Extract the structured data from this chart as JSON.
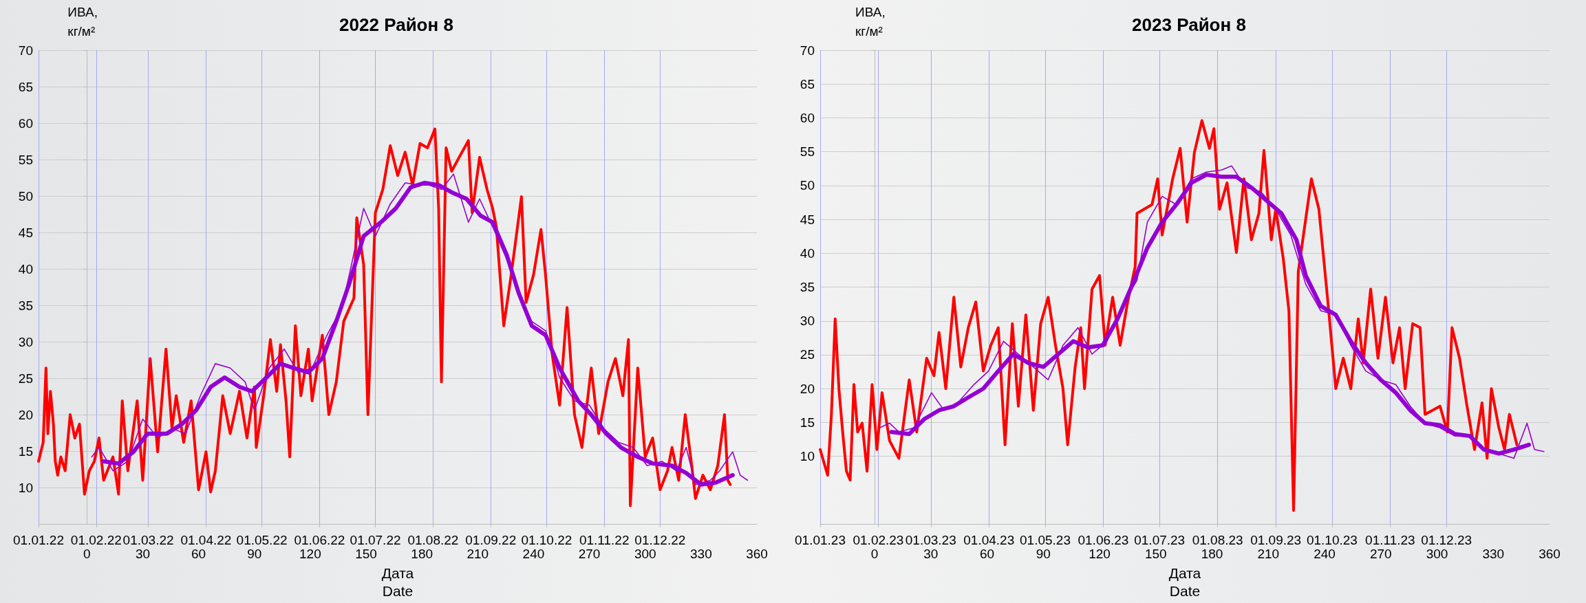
{
  "chart_data": [
    {
      "type": "line",
      "title": "2022 Район 8",
      "xlabel": "Дата\nDate",
      "ylabel": "ИВА,\nкг/м²",
      "xlim": [
        -26,
        360
      ],
      "xticks": [
        0,
        30,
        60,
        90,
        120,
        150,
        180,
        210,
        240,
        270,
        300,
        330,
        360
      ],
      "x2lim": [
        "2022-01-01",
        "2023-01-22"
      ],
      "x2ticks": [
        {
          "value": "2022-01-01",
          "label": "01.01.22"
        },
        {
          "value": "2022-02-01",
          "label": "01.02.22"
        },
        {
          "value": "2022-03-01",
          "label": "01.03.22"
        },
        {
          "value": "2022-04-01",
          "label": "01.04.22"
        },
        {
          "value": "2022-05-01",
          "label": "01.05.22"
        },
        {
          "value": "2022-06-01",
          "label": "01.06.22"
        },
        {
          "value": "2022-07-01",
          "label": "01.07.22"
        },
        {
          "value": "2022-08-01",
          "label": "01.08.22"
        },
        {
          "value": "2022-09-01",
          "label": "01.09.22"
        },
        {
          "value": "2022-10-01",
          "label": "01.10.22"
        },
        {
          "value": "2022-11-01",
          "label": "01.11.22"
        },
        {
          "value": "2022-12-01",
          "label": "01.12.22"
        }
      ],
      "ylim": [
        5,
        70
      ],
      "yticks": [
        10,
        15,
        20,
        25,
        30,
        35,
        40,
        45,
        50,
        55,
        60,
        65,
        70
      ],
      "grid": true,
      "marker": "none",
      "line_style": "solid",
      "series": [
        {
          "color": "#ff0000",
          "x": [
            -26,
            -23.5,
            -22,
            -21,
            -19.6,
            -18,
            -17,
            -15.7,
            -14,
            -11.7,
            -9,
            -6.5,
            -4,
            -1.3,
            1.3,
            4,
            6.5,
            9,
            14,
            17,
            19,
            22,
            27,
            30,
            34,
            38,
            42.5,
            45.7,
            48,
            52,
            56,
            60,
            64,
            66.5,
            69,
            73,
            77,
            82,
            86,
            90,
            91,
            95,
            98.6,
            102,
            104,
            107,
            109,
            112,
            115,
            119,
            121,
            126.5,
            130,
            134,
            138,
            143.5,
            145,
            148.7,
            151,
            155,
            159,
            163,
            167,
            171,
            175,
            179,
            183,
            187,
            189,
            190.5,
            193,
            196,
            200,
            205,
            207,
            211,
            215,
            218,
            220,
            224,
            228,
            233.5,
            236,
            240,
            244,
            246.5,
            250,
            254,
            258,
            262,
            266,
            271,
            275,
            280,
            284,
            288,
            291,
            292,
            296,
            300,
            304,
            308,
            312,
            314.4,
            318,
            321.5,
            325,
            327,
            331,
            335,
            339,
            342.6,
            344.4,
            345.7
          ],
          "values": [
            13.6,
            16.2,
            26.4,
            17.4,
            23.2,
            18.7,
            13.6,
            11.7,
            14.2,
            12.3,
            20,
            16.8,
            18.7,
            9.1,
            12.3,
            13.6,
            16.8,
            11,
            14.2,
            9.1,
            21.9,
            12.3,
            21.9,
            11,
            27.7,
            14.9,
            29,
            18.1,
            22.6,
            16.2,
            21.9,
            9.7,
            14.9,
            9.4,
            12.3,
            22.6,
            17.4,
            23.2,
            16.8,
            23.8,
            15.5,
            22.6,
            30.3,
            23.2,
            29.6,
            21.9,
            14.2,
            32.2,
            22.6,
            29,
            21.9,
            30.9,
            20,
            24.5,
            32.8,
            36,
            47,
            40.6,
            20,
            47.7,
            50.9,
            56.9,
            52.8,
            56,
            51.5,
            57.2,
            56.6,
            59.2,
            48.3,
            24.5,
            56.6,
            53.4,
            55.3,
            57.6,
            47.7,
            55.3,
            50.9,
            48.3,
            45.8,
            32.2,
            39.2,
            49.9,
            35.4,
            39.2,
            45.4,
            39,
            28.3,
            21.3,
            34.7,
            20,
            15.5,
            26.4,
            17.4,
            24.5,
            27.7,
            22.6,
            30.3,
            7.5,
            26.4,
            14.2,
            16.8,
            9.7,
            12.3,
            15.5,
            11,
            20,
            13,
            8.5,
            11.7,
            9.7,
            13,
            20,
            11,
            10.4
          ]
        },
        {
          "color": "#9900cc",
          "x": [
            2.6,
            6.5,
            14,
            22,
            30,
            38,
            45.7,
            53,
            61,
            69,
            77,
            85,
            90,
            98,
            106,
            113.5,
            121,
            129,
            137,
            141,
            148.7,
            155,
            163,
            171,
            179,
            184,
            190.5,
            197,
            205,
            211,
            218,
            225.6,
            233.5,
            239,
            246.5,
            254,
            262,
            270,
            277.8,
            285.6,
            293.5,
            301,
            309,
            316.8,
            322,
            327,
            335,
            340,
            347,
            351,
            355
          ],
          "values": [
            14.2,
            15.5,
            12.3,
            13.6,
            19.4,
            16.8,
            18.1,
            17.4,
            22.6,
            27,
            26.4,
            24.5,
            20.6,
            26.4,
            29,
            25.8,
            26.4,
            30.9,
            34.7,
            39.2,
            48.3,
            44.5,
            48.9,
            51.8,
            51.5,
            51.5,
            50.9,
            53,
            46.4,
            49.6,
            45.8,
            41.3,
            36,
            32.8,
            31.5,
            25.1,
            21.9,
            21.3,
            18.1,
            16.2,
            15.5,
            13,
            13.6,
            12.3,
            15.5,
            10.4,
            11,
            12.3,
            14.9,
            11.7,
            11
          ]
        },
        {
          "color": "#9400d3",
          "x": [
            9,
            17,
            25,
            32.6,
            43,
            51,
            58.7,
            66.5,
            74,
            82,
            88.7,
            96.5,
            104,
            111,
            119,
            126.5,
            134,
            141,
            148.7,
            158,
            166,
            174,
            181.5,
            189,
            196,
            204,
            211.5,
            218,
            225.6,
            232,
            239,
            246.5,
            254,
            264,
            271,
            279,
            287,
            296,
            304,
            314.4,
            322,
            330,
            338,
            347
          ],
          "values": [
            13.6,
            13.3,
            14.9,
            17.4,
            17.4,
            18.7,
            20.6,
            23.8,
            25.1,
            23.8,
            23.2,
            25.1,
            27,
            26.4,
            25.8,
            27.7,
            32.8,
            38,
            44.5,
            46.4,
            48.3,
            51.2,
            51.8,
            51.5,
            50.5,
            49.6,
            47.3,
            46.4,
            41.9,
            36.7,
            32.2,
            30.9,
            26.4,
            21.9,
            20,
            17.4,
            15.5,
            14.2,
            13.3,
            13,
            12,
            10.4,
            10.7,
            11.7
          ]
        }
      ]
    },
    {
      "type": "line",
      "title": "2023 Район 8",
      "xlabel": "Дата\nDate",
      "ylabel": "ИВА,\nкг/м²",
      "xlim": [
        -29,
        360
      ],
      "xticks": [
        0,
        30,
        60,
        90,
        120,
        150,
        180,
        210,
        240,
        270,
        300,
        330,
        360
      ],
      "x2lim": [
        "2023-01-01",
        "2024-01-25"
      ],
      "x2ticks": [
        {
          "value": "2023-01-01",
          "label": "01.01.23"
        },
        {
          "value": "2023-02-01",
          "label": "01.02.23"
        },
        {
          "value": "2023-03-01",
          "label": "01.03.23"
        },
        {
          "value": "2023-04-01",
          "label": "01.04.23"
        },
        {
          "value": "2023-05-01",
          "label": "01.05.23"
        },
        {
          "value": "2023-06-01",
          "label": "01.06.23"
        },
        {
          "value": "2023-07-01",
          "label": "01.07.23"
        },
        {
          "value": "2023-08-01",
          "label": "01.08.23"
        },
        {
          "value": "2023-09-01",
          "label": "01.09.23"
        },
        {
          "value": "2023-10-01",
          "label": "01.10.23"
        },
        {
          "value": "2023-11-01",
          "label": "01.11.23"
        },
        {
          "value": "2023-12-01",
          "label": "01.12.23"
        }
      ],
      "ylim": [
        0,
        70
      ],
      "yticks": [
        10,
        15,
        20,
        25,
        30,
        35,
        40,
        45,
        50,
        55,
        60,
        65,
        70
      ],
      "grid": true,
      "marker": "none",
      "line_style": "solid",
      "series": [
        {
          "color": "#ff0000",
          "x": [
            -29,
            -27,
            -25,
            -23,
            -21,
            -19,
            -17,
            -15,
            -13,
            -11,
            -9,
            -6.6,
            -4,
            -1.3,
            1.3,
            4,
            8,
            13,
            18.5,
            22.5,
            27.8,
            31.7,
            34.4,
            38,
            42.3,
            46,
            50,
            54,
            58,
            62,
            66,
            69.6,
            73.5,
            76.7,
            80.7,
            84.7,
            88.6,
            92.6,
            96.5,
            100.5,
            103,
            107,
            110,
            112,
            116,
            120,
            123,
            127,
            131,
            135,
            139,
            140,
            148,
            151,
            153.4,
            159,
            163,
            166.7,
            170.6,
            174.6,
            178.6,
            181,
            184,
            188,
            193,
            197,
            201,
            205,
            207.7,
            211.6,
            214,
            218,
            221,
            223.5,
            226,
            233,
            237,
            239,
            242,
            246,
            250,
            254,
            258,
            260.6,
            264.6,
            268.5,
            272.5,
            276.5,
            280,
            283,
            287,
            291,
            293.6,
            297.6,
            301.6,
            305.5,
            308,
            312,
            316,
            320,
            324,
            326.7,
            329,
            333,
            336,
            338.6,
            342.6
          ],
          "values": [
            11,
            9.1,
            7.2,
            16.2,
            30.3,
            20,
            13.6,
            7.8,
            6.5,
            20.6,
            13.6,
            14.9,
            7.8,
            20.6,
            11,
            19.4,
            12.3,
            9.7,
            21.3,
            13.6,
            24.5,
            21.9,
            28.3,
            20,
            33.5,
            23.2,
            29,
            32.8,
            22.6,
            26.4,
            29,
            11.7,
            29.6,
            17.4,
            30.9,
            16.8,
            29.6,
            33.5,
            26.4,
            20,
            11.7,
            23.2,
            29,
            20,
            34.7,
            36.7,
            26.4,
            33.5,
            26.4,
            32.8,
            38,
            45.9,
            47.2,
            51,
            42.7,
            51,
            55.5,
            44.6,
            54.9,
            59.6,
            55.5,
            58.4,
            46.5,
            50.4,
            40.1,
            51,
            42,
            45.9,
            55.2,
            42,
            46.5,
            39.2,
            31.5,
            2,
            37.3,
            51,
            46.5,
            40.8,
            32.2,
            20,
            24.5,
            20,
            30.3,
            23.8,
            34.7,
            24.5,
            33.5,
            23.8,
            29,
            20,
            29.6,
            29,
            16.2,
            16.8,
            17.4,
            13.6,
            29,
            24.5,
            17.4,
            11,
            17.9,
            9.7,
            20,
            14.2,
            11,
            16.2,
            11.7
          ]
        },
        {
          "color": "#9900cc",
          "x": [
            2.6,
            8,
            13,
            21,
            30.4,
            37,
            45,
            53,
            60.8,
            68.8,
            76.7,
            84.7,
            92.6,
            100.5,
            108.5,
            116,
            124,
            132,
            140,
            145.5,
            153.4,
            161,
            169,
            177,
            185,
            190.5,
            198,
            206,
            214,
            222,
            230,
            238,
            246,
            254,
            262,
            270,
            278,
            285.7,
            293.6,
            301.6,
            309.5,
            317.5,
            325,
            333,
            341,
            348,
            352,
            357
          ],
          "values": [
            14.2,
            14.9,
            13.6,
            14.2,
            19.4,
            16.8,
            18.1,
            20.6,
            22.6,
            27,
            25.1,
            23.2,
            21.3,
            26.4,
            29,
            25.1,
            27,
            32.2,
            36,
            44.6,
            48.4,
            47.2,
            51,
            52,
            52.3,
            52.9,
            49.7,
            49.1,
            46.5,
            42.7,
            35.4,
            31.5,
            30.9,
            26.4,
            22.6,
            21.3,
            20.6,
            17.4,
            14.9,
            14.2,
            13,
            13,
            11,
            10.4,
            9.7,
            14.9,
            11,
            10.7
          ]
        },
        {
          "color": "#9400d3",
          "x": [
            9,
            18.5,
            26.5,
            34.4,
            42.3,
            50,
            58,
            66,
            74,
            82,
            90,
            98,
            106,
            113.8,
            121.7,
            129.6,
            137.6,
            145.5,
            153.4,
            161,
            169,
            177,
            185,
            193,
            201,
            209,
            217,
            225,
            230,
            238,
            246,
            254,
            262,
            270,
            278,
            285.7,
            293.6,
            301.6,
            309.5,
            317.5,
            325,
            333,
            341,
            349
          ],
          "values": [
            13.6,
            13.3,
            15.5,
            16.8,
            17.4,
            18.7,
            20,
            22.6,
            25.1,
            23.8,
            23.2,
            25.1,
            27,
            26.1,
            26.4,
            30.3,
            35.4,
            40.8,
            44.6,
            47.2,
            50.4,
            51.6,
            51.3,
            51.3,
            49.7,
            47.8,
            45.9,
            42,
            36.7,
            32.2,
            30.9,
            27,
            23.8,
            21.3,
            19.4,
            16.8,
            14.9,
            14.6,
            13.3,
            13,
            11,
            10.4,
            11,
            11.7
          ]
        }
      ]
    }
  ]
}
